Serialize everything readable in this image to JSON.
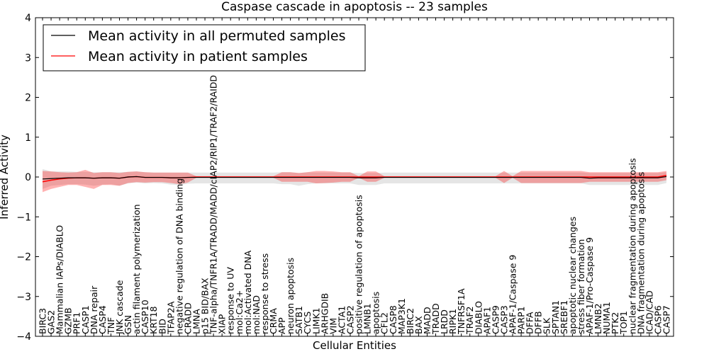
{
  "chart_data": {
    "type": "line",
    "title": "Caspase cascade in apoptosis -- 23 samples",
    "xlabel": "Cellular Entities",
    "ylabel": "Inferred Activity",
    "ylim": [
      -4,
      4
    ],
    "yticks": [
      "−4",
      "−3",
      "−2",
      "−1",
      "0",
      "1",
      "2",
      "3",
      "4"
    ],
    "legend": {
      "placement": "top-left",
      "entries": [
        {
          "label": "Mean activity in all permuted samples",
          "color": "#000000"
        },
        {
          "label": "Mean activity in patient samples",
          "color": "#ff0000"
        }
      ]
    },
    "categories": [
      "BIRC3",
      "GAS2",
      "Mammalian IAPs/DIABLO",
      "GZMB",
      "PRF1",
      "CASP1",
      "DNA repair",
      "CASP4",
      "TNF",
      "JNK cascade",
      "GSN",
      "actin filament polymerization",
      "CASP10",
      "KRT18",
      "BID",
      "TFAP2A",
      "negative regulation of DNA binding",
      "CRADD",
      "LMNA",
      "p15 BID/BAX",
      "TNF-alpha/TNFR1A/TRADD/MADD/cIAP2/RIP1/TRAF2/RAIDD",
      "XIAP",
      "response to UV",
      "mol:Ca2+",
      "mol:Activated DNA",
      "mol:NAD",
      "response to stress",
      "CRMA",
      "APP",
      "neuron apoptosis",
      "SATB1",
      "CYCS",
      "LIMK1",
      "ARHGDIB",
      "VIM",
      "ACTA1",
      "CASP2",
      "positive regulation of apoptosis",
      "LMNB1",
      "apoptosis",
      "CFL2",
      "CASP8",
      "MAP3K1",
      "BIRC2",
      "BAX",
      "MADD",
      "TRADD",
      "LRDD",
      "RIPK1",
      "TNFRSF1A",
      "TRAF2",
      "DIABLO",
      "APAF1",
      "CASP9",
      "CASP3",
      "APAF-1/Caspase 9",
      "PARP1",
      "DFFA",
      "DFFB",
      "SLK",
      "SPTAN1",
      "SREBF1",
      "apoptotic nuclear changes",
      "stress fiber formation",
      "APAF-1/Pro-Caspase 9",
      "LMNB2",
      "NUMA1",
      "PTK2",
      "TOP1",
      "nuclear fragmentation during apoptosis",
      "DNA fragmentation during apoptosis",
      "ICAD/CAD",
      "CASP6",
      "CASP7"
    ],
    "series": [
      {
        "name": "Mean activity in all permuted samples",
        "color": "#000000",
        "values": [
          -0.05,
          -0.04,
          -0.03,
          -0.02,
          -0.02,
          -0.02,
          -0.03,
          -0.02,
          -0.02,
          -0.03,
          0.0,
          0.01,
          -0.01,
          -0.01,
          -0.01,
          -0.02,
          -0.02,
          -0.01,
          -0.01,
          -0.01,
          -0.01,
          -0.01,
          -0.01,
          -0.01,
          -0.01,
          -0.01,
          -0.01,
          -0.01,
          -0.01,
          -0.01,
          -0.01,
          -0.01,
          -0.01,
          -0.01,
          -0.01,
          -0.01,
          -0.01,
          -0.02,
          -0.02,
          -0.02,
          -0.01,
          -0.01,
          -0.01,
          -0.01,
          -0.01,
          -0.01,
          -0.01,
          -0.01,
          -0.01,
          -0.01,
          -0.01,
          -0.01,
          -0.01,
          -0.01,
          -0.01,
          -0.01,
          -0.01,
          -0.01,
          -0.01,
          -0.01,
          -0.01,
          -0.01,
          -0.01,
          -0.01,
          -0.03,
          -0.02,
          -0.02,
          -0.02,
          -0.02,
          -0.02,
          -0.02,
          -0.02,
          -0.02,
          0.01
        ],
        "band_lower": [
          -0.3,
          -0.22,
          -0.2,
          -0.18,
          -0.18,
          -0.19,
          -0.22,
          -0.19,
          -0.18,
          -0.22,
          -0.16,
          -0.14,
          -0.16,
          -0.15,
          -0.16,
          -0.19,
          -0.2,
          -0.17,
          -0.16,
          -0.16,
          -0.16,
          -0.16,
          -0.16,
          -0.16,
          -0.16,
          -0.16,
          -0.16,
          -0.16,
          -0.18,
          -0.18,
          -0.22,
          -0.18,
          -0.16,
          -0.16,
          -0.16,
          -0.16,
          -0.16,
          -0.2,
          -0.2,
          -0.2,
          -0.16,
          -0.16,
          -0.16,
          -0.16,
          -0.16,
          -0.16,
          -0.16,
          -0.16,
          -0.16,
          -0.16,
          -0.16,
          -0.16,
          -0.16,
          -0.16,
          -0.16,
          -0.16,
          -0.16,
          -0.16,
          -0.16,
          -0.16,
          -0.16,
          -0.16,
          -0.16,
          -0.16,
          -0.2,
          -0.2,
          -0.2,
          -0.2,
          -0.2,
          -0.2,
          -0.2,
          -0.2,
          -0.2,
          -0.15
        ],
        "band_upper": [
          0.2,
          0.14,
          0.14,
          0.14,
          0.13,
          0.13,
          0.12,
          0.12,
          0.12,
          0.12,
          0.13,
          0.14,
          0.12,
          0.11,
          0.11,
          0.11,
          0.11,
          0.11,
          0.11,
          0.11,
          0.11,
          0.11,
          0.11,
          0.11,
          0.11,
          0.11,
          0.11,
          0.11,
          0.12,
          0.12,
          0.1,
          0.12,
          0.11,
          0.11,
          0.11,
          0.11,
          0.11,
          0.1,
          0.1,
          0.1,
          0.11,
          0.11,
          0.11,
          0.11,
          0.11,
          0.11,
          0.11,
          0.11,
          0.11,
          0.11,
          0.11,
          0.11,
          0.11,
          0.11,
          0.11,
          0.11,
          0.11,
          0.11,
          0.11,
          0.11,
          0.11,
          0.11,
          0.11,
          0.11,
          0.1,
          0.1,
          0.1,
          0.1,
          0.1,
          0.1,
          0.1,
          0.1,
          0.1,
          0.12
        ]
      },
      {
        "name": "Mean activity in patient samples",
        "color": "#ff0000",
        "values": [
          -0.12,
          -0.08,
          -0.05,
          -0.03,
          -0.02,
          -0.02,
          -0.03,
          -0.02,
          -0.02,
          -0.03,
          0.0,
          0.01,
          -0.01,
          -0.01,
          -0.01,
          -0.02,
          -0.02,
          -0.01,
          0.0,
          0.0,
          0.0,
          0.0,
          0.0,
          0.0,
          0.0,
          0.0,
          0.0,
          0.0,
          0.0,
          0.0,
          0.0,
          0.0,
          0.0,
          0.0,
          0.0,
          0.0,
          0.0,
          0.0,
          0.0,
          0.0,
          0.0,
          0.0,
          0.0,
          0.0,
          0.0,
          0.0,
          0.0,
          0.0,
          0.0,
          0.0,
          0.0,
          0.0,
          0.0,
          0.0,
          0.0,
          0.0,
          0.0,
          0.0,
          0.0,
          0.0,
          0.0,
          0.0,
          0.0,
          0.0,
          0.0,
          0.0,
          0.0,
          0.0,
          0.0,
          0.0,
          0.0,
          0.0,
          0.0,
          0.04
        ],
        "band_lower": [
          -0.38,
          -0.3,
          -0.25,
          -0.2,
          -0.2,
          -0.25,
          -0.3,
          -0.2,
          -0.2,
          -0.22,
          -0.15,
          -0.13,
          -0.14,
          -0.13,
          -0.13,
          -0.15,
          -0.18,
          -0.14,
          -0.02,
          -0.02,
          -0.02,
          -0.02,
          -0.02,
          -0.02,
          -0.02,
          -0.02,
          -0.02,
          -0.02,
          -0.12,
          -0.12,
          -0.12,
          -0.12,
          -0.16,
          -0.15,
          -0.14,
          -0.12,
          -0.12,
          -0.02,
          -0.12,
          -0.12,
          -0.02,
          -0.02,
          -0.02,
          -0.02,
          -0.02,
          -0.02,
          -0.02,
          -0.02,
          -0.02,
          -0.02,
          -0.02,
          -0.02,
          -0.02,
          -0.02,
          -0.15,
          -0.02,
          -0.15,
          -0.15,
          -0.15,
          -0.15,
          -0.15,
          -0.15,
          -0.15,
          -0.15,
          -0.12,
          -0.12,
          -0.12,
          -0.12,
          -0.12,
          -0.12,
          -0.12,
          -0.12,
          -0.12,
          -0.08
        ],
        "band_upper": [
          0.15,
          0.14,
          0.12,
          0.11,
          0.12,
          0.18,
          0.1,
          0.12,
          0.12,
          0.1,
          0.13,
          0.14,
          0.12,
          0.11,
          0.11,
          0.11,
          0.11,
          0.11,
          0.02,
          0.02,
          0.02,
          0.02,
          0.02,
          0.02,
          0.02,
          0.02,
          0.02,
          0.02,
          0.12,
          0.12,
          0.1,
          0.12,
          0.15,
          0.15,
          0.14,
          0.12,
          0.12,
          0.02,
          0.14,
          0.14,
          0.02,
          0.02,
          0.02,
          0.02,
          0.02,
          0.02,
          0.02,
          0.02,
          0.02,
          0.02,
          0.02,
          0.02,
          0.02,
          0.02,
          0.15,
          0.02,
          0.15,
          0.15,
          0.15,
          0.15,
          0.15,
          0.15,
          0.15,
          0.15,
          0.12,
          0.12,
          0.12,
          0.12,
          0.12,
          0.12,
          0.12,
          0.12,
          0.12,
          0.15
        ]
      }
    ]
  }
}
